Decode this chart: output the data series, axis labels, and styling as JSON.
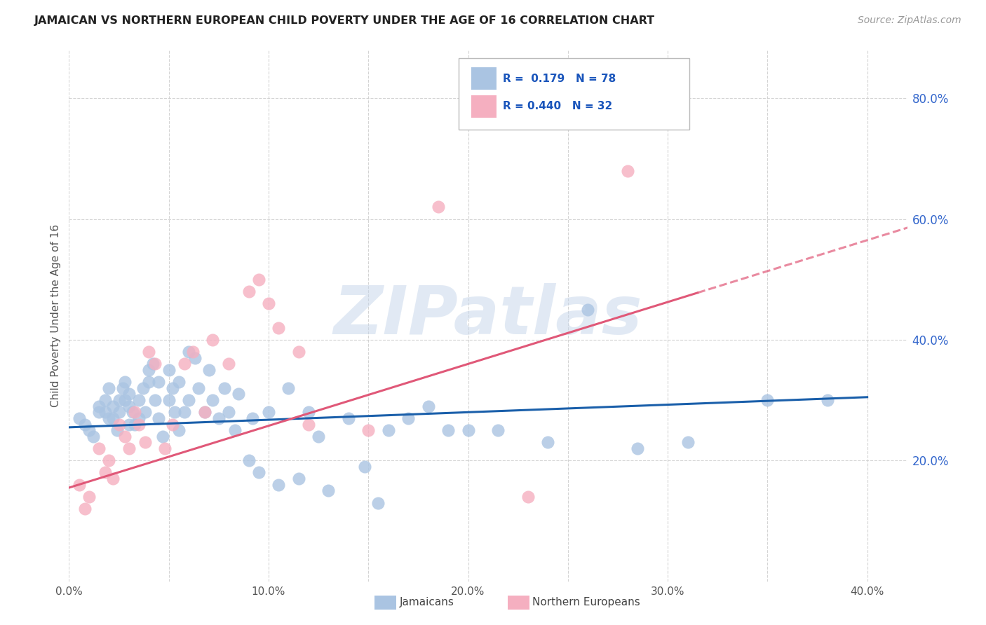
{
  "title": "JAMAICAN VS NORTHERN EUROPEAN CHILD POVERTY UNDER THE AGE OF 16 CORRELATION CHART",
  "source": "Source: ZipAtlas.com",
  "ylabel": "Child Poverty Under the Age of 16",
  "xlim": [
    0.0,
    0.42
  ],
  "ylim": [
    0.0,
    0.88
  ],
  "xtick_labels": [
    "0.0%",
    "",
    "10.0%",
    "",
    "20.0%",
    "",
    "30.0%",
    "",
    "40.0%"
  ],
  "xtick_vals": [
    0.0,
    0.05,
    0.1,
    0.15,
    0.2,
    0.25,
    0.3,
    0.35,
    0.4
  ],
  "ytick_labels": [
    "20.0%",
    "40.0%",
    "60.0%",
    "80.0%"
  ],
  "ytick_vals": [
    0.2,
    0.4,
    0.6,
    0.8
  ],
  "legend_label1": "Jamaicans",
  "legend_label2": "Northern Europeans",
  "R1": "0.179",
  "N1": "78",
  "R2": "0.440",
  "N2": "32",
  "color1": "#aac4e2",
  "color2": "#f5afc0",
  "line_color1": "#1a5faa",
  "line_color2": "#e05878",
  "watermark": "ZIPatlas",
  "background_color": "#ffffff",
  "grid_color": "#d0d0d0",
  "title_color": "#222222",
  "jamaicans_x": [
    0.005,
    0.008,
    0.01,
    0.012,
    0.015,
    0.015,
    0.018,
    0.018,
    0.02,
    0.02,
    0.022,
    0.022,
    0.024,
    0.025,
    0.025,
    0.027,
    0.028,
    0.028,
    0.03,
    0.03,
    0.03,
    0.032,
    0.033,
    0.035,
    0.035,
    0.037,
    0.038,
    0.04,
    0.04,
    0.042,
    0.043,
    0.045,
    0.045,
    0.047,
    0.05,
    0.05,
    0.052,
    0.053,
    0.055,
    0.055,
    0.058,
    0.06,
    0.06,
    0.063,
    0.065,
    0.068,
    0.07,
    0.072,
    0.075,
    0.078,
    0.08,
    0.083,
    0.085,
    0.09,
    0.092,
    0.095,
    0.1,
    0.105,
    0.11,
    0.115,
    0.12,
    0.125,
    0.13,
    0.14,
    0.148,
    0.155,
    0.16,
    0.17,
    0.18,
    0.19,
    0.2,
    0.215,
    0.24,
    0.26,
    0.285,
    0.31,
    0.35,
    0.38
  ],
  "jamaicans_y": [
    0.27,
    0.26,
    0.25,
    0.24,
    0.29,
    0.28,
    0.3,
    0.28,
    0.32,
    0.27,
    0.29,
    0.27,
    0.25,
    0.3,
    0.28,
    0.32,
    0.33,
    0.3,
    0.31,
    0.29,
    0.26,
    0.28,
    0.26,
    0.3,
    0.27,
    0.32,
    0.28,
    0.35,
    0.33,
    0.36,
    0.3,
    0.33,
    0.27,
    0.24,
    0.35,
    0.3,
    0.32,
    0.28,
    0.33,
    0.25,
    0.28,
    0.38,
    0.3,
    0.37,
    0.32,
    0.28,
    0.35,
    0.3,
    0.27,
    0.32,
    0.28,
    0.25,
    0.31,
    0.2,
    0.27,
    0.18,
    0.28,
    0.16,
    0.32,
    0.17,
    0.28,
    0.24,
    0.15,
    0.27,
    0.19,
    0.13,
    0.25,
    0.27,
    0.29,
    0.25,
    0.25,
    0.25,
    0.23,
    0.45,
    0.22,
    0.23,
    0.3,
    0.3
  ],
  "northern_x": [
    0.005,
    0.008,
    0.01,
    0.015,
    0.018,
    0.02,
    0.022,
    0.025,
    0.028,
    0.03,
    0.033,
    0.035,
    0.038,
    0.04,
    0.043,
    0.048,
    0.052,
    0.058,
    0.062,
    0.068,
    0.072,
    0.08,
    0.09,
    0.095,
    0.1,
    0.105,
    0.115,
    0.12,
    0.15,
    0.185,
    0.23,
    0.28
  ],
  "northern_y": [
    0.16,
    0.12,
    0.14,
    0.22,
    0.18,
    0.2,
    0.17,
    0.26,
    0.24,
    0.22,
    0.28,
    0.26,
    0.23,
    0.38,
    0.36,
    0.22,
    0.26,
    0.36,
    0.38,
    0.28,
    0.4,
    0.36,
    0.48,
    0.5,
    0.46,
    0.42,
    0.38,
    0.26,
    0.25,
    0.62,
    0.14,
    0.68
  ],
  "line1_x0": 0.0,
  "line1_x1": 0.4,
  "line1_y0": 0.255,
  "line1_y1": 0.305,
  "line2_x0": 0.0,
  "line2_x1": 0.4,
  "line2_y0": 0.155,
  "line2_y1": 0.565,
  "line2_solid_end": 0.315,
  "line2_dash_start": 0.315
}
